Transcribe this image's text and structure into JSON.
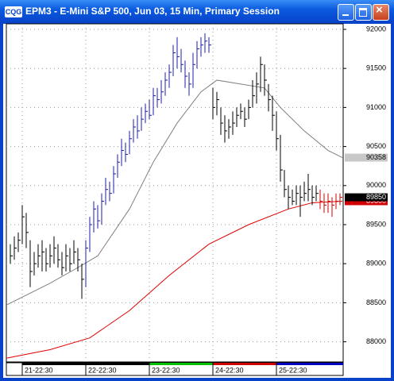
{
  "chart_data": {
    "type": "ohlc",
    "title": "EPM3 - E-Mini S&P 500, Jun 03, 15 Min, Primary Session",
    "ylim": [
      87742,
      92071
    ],
    "yticks": [
      88000,
      88500,
      89000,
      89500,
      90000,
      90500,
      91000,
      91500,
      92000
    ],
    "xlim": [
      -1,
      83.8
    ],
    "xticks": [
      {
        "value": 3,
        "label": "21-22:30"
      },
      {
        "value": 19,
        "label": "22-22:30"
      },
      {
        "value": 35,
        "label": "23-22:30"
      },
      {
        "value": 51,
        "label": "24-22:30"
      },
      {
        "value": 67,
        "label": "25-22:30"
      }
    ],
    "day_colors": [
      "#000000",
      "#000000",
      "#00c000",
      "#d00000",
      "#0000c0"
    ],
    "grid": true,
    "high": [
      89250,
      89350,
      89400,
      89750,
      89650,
      89300,
      89150,
      89250,
      89300,
      89200,
      89250,
      89350,
      89250,
      89150,
      89250,
      89200,
      89300,
      89200,
      89000,
      89300,
      89600,
      89800,
      89750,
      89900,
      90100,
      90050,
      90250,
      90400,
      90600,
      90550,
      90700,
      90850,
      90900,
      91000,
      91050,
      91100,
      91250,
      91250,
      91350,
      91450,
      91550,
      91800,
      91900,
      91750,
      91600,
      91450,
      91700,
      91850,
      91900,
      91950,
      91900,
      91250,
      91200,
      91000,
      90900,
      90850,
      90950,
      91000,
      91050,
      91000,
      91100,
      91350,
      91450,
      91650,
      91550,
      91300,
      91150,
      90950,
      90650,
      90200,
      90000,
      89950,
      90000,
      90000,
      90050,
      90150,
      90000,
      90000,
      89950,
      89900,
      89900,
      89850,
      89900,
      89900
    ],
    "low": [
      89000,
      89050,
      89150,
      89250,
      89200,
      88700,
      88850,
      88950,
      88900,
      88900,
      88950,
      89000,
      88950,
      88850,
      88900,
      88900,
      89000,
      88900,
      88550,
      88700,
      89150,
      89400,
      89450,
      89500,
      89750,
      89800,
      89900,
      90100,
      90250,
      90300,
      90400,
      90550,
      90600,
      90700,
      90800,
      90850,
      90900,
      91000,
      91050,
      91150,
      91250,
      91400,
      91500,
      91450,
      91250,
      91150,
      91250,
      91500,
      91650,
      91700,
      91700,
      90850,
      90900,
      90650,
      90550,
      90600,
      90650,
      90750,
      90850,
      90750,
      90850,
      91000,
      91050,
      91200,
      91150,
      90950,
      90700,
      90450,
      90050,
      89850,
      89700,
      89750,
      89750,
      89600,
      89800,
      89800,
      89750,
      89800,
      89700,
      89650,
      89650,
      89600,
      89700,
      89750
    ],
    "close": [
      89100,
      89200,
      89300,
      89600,
      89400,
      88900,
      89000,
      89100,
      89150,
      89000,
      89100,
      89200,
      89050,
      88950,
      89100,
      89000,
      89150,
      89050,
      88800,
      89200,
      89500,
      89700,
      89550,
      89800,
      89950,
      89900,
      90150,
      90300,
      90450,
      90400,
      90600,
      90750,
      90700,
      90850,
      90950,
      90900,
      91150,
      91100,
      91200,
      91350,
      91450,
      91700,
      91650,
      91550,
      91400,
      91300,
      91550,
      91750,
      91800,
      91850,
      91800,
      91000,
      91100,
      90800,
      90700,
      90750,
      90800,
      90900,
      90950,
      90850,
      91000,
      91150,
      91300,
      91550,
      91350,
      91100,
      90900,
      90600,
      90200,
      89950,
      89850,
      89800,
      89900,
      89850,
      89900,
      89950,
      89850,
      89900,
      89800,
      89750,
      89800,
      89750,
      89800,
      89850
    ],
    "colors": [
      "#000000",
      "#000000",
      "#000000",
      "#000000",
      "#000000",
      "#000000",
      "#000000",
      "#000000",
      "#000000",
      "#000000",
      "#000000",
      "#000000",
      "#000000",
      "#000000",
      "#000000",
      "#000000",
      "#000000",
      "#000000",
      "#000000",
      "#1c1ca8",
      "#1c1ca8",
      "#1c1ca8",
      "#1c1ca8",
      "#1c1ca8",
      "#1c1ca8",
      "#1c1ca8",
      "#1c1ca8",
      "#1c1ca8",
      "#1c1ca8",
      "#1c1ca8",
      "#1c1ca8",
      "#1c1ca8",
      "#1c1ca8",
      "#1c1ca8",
      "#1c1ca8",
      "#1c1ca8",
      "#1c1ca8",
      "#1c1ca8",
      "#1c1ca8",
      "#1c1ca8",
      "#1c1ca8",
      "#1c1ca8",
      "#1c1ca8",
      "#1c1ca8",
      "#1c1ca8",
      "#1c1ca8",
      "#1c1ca8",
      "#1c1ca8",
      "#1c1ca8",
      "#1c1ca8",
      "#1c1ca8",
      "#000000",
      "#000000",
      "#000000",
      "#000000",
      "#000000",
      "#000000",
      "#000000",
      "#000000",
      "#000000",
      "#000000",
      "#000000",
      "#000000",
      "#000000",
      "#000000",
      "#000000",
      "#000000",
      "#000000",
      "#000000",
      "#000000",
      "#000000",
      "#000000",
      "#000000",
      "#000000",
      "#000000",
      "#000000",
      "#000000",
      "#000000",
      "#d00000",
      "#d00000",
      "#d00000",
      "#d00000",
      "#d00000",
      "#d00000"
    ],
    "series": [
      {
        "color": "#808080",
        "x": [
          -1,
          10,
          17,
          22,
          30,
          36,
          42,
          48,
          52,
          58,
          64,
          68,
          74,
          80,
          83.6
        ],
        "values": [
          88470,
          88750,
          88950,
          89100,
          89700,
          90300,
          90800,
          91200,
          91350,
          91300,
          91250,
          91000,
          90700,
          90450,
          90358
        ]
      },
      {
        "color": "#e00000",
        "x": [
          -1,
          10,
          20,
          30,
          40,
          50,
          60,
          70,
          76,
          83.6
        ],
        "values": [
          87790,
          87900,
          88050,
          88400,
          88850,
          89250,
          89500,
          89700,
          89780,
          89800
        ]
      }
    ],
    "price_labels": [
      {
        "value": 90358,
        "color": "#c8c8c8",
        "text_color": "#000000"
      },
      {
        "value": 89800,
        "color": "#d00000",
        "text_color": "#ffffff"
      },
      {
        "value": 89850,
        "color": "#000000",
        "text_color": "#ffffff"
      }
    ]
  }
}
